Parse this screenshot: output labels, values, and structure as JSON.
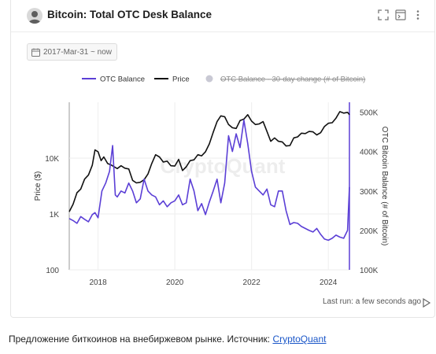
{
  "header": {
    "title": "Bitcoin: Total OTC Desk Balance"
  },
  "filters": {
    "date_range": "2017-Mar-31 ~ now"
  },
  "footer": {
    "last_run": "Last run: a few seconds ago"
  },
  "caption": {
    "text": "Предложение биткоинов на внебиржевом рынке. Источник: ",
    "link": "CryptoQuant"
  },
  "watermark": "CryptoQuant",
  "colors": {
    "otc": "#5b3fd6",
    "price": "#111111",
    "change": "#c9c9d4",
    "grid": "#eeeeee"
  },
  "chart_data": {
    "type": "line",
    "title": "Bitcoin: Total OTC Desk Balance",
    "ylabel_left": "Price ($)",
    "ylabel_right": "OTC Bitcoin Balance (# of Bitcoin)",
    "y_left_scale": "log",
    "y_left_range": [
      100,
      100000
    ],
    "y_left_ticks": [
      {
        "v": 100,
        "label": "100"
      },
      {
        "v": 1000,
        "label": "1K"
      },
      {
        "v": 10000,
        "label": "10K"
      }
    ],
    "y_right_range": [
      100000,
      525000
    ],
    "y_right_ticks": [
      {
        "v": 100000,
        "label": "100K"
      },
      {
        "v": 200000,
        "label": "200K"
      },
      {
        "v": 300000,
        "label": "300K"
      },
      {
        "v": 400000,
        "label": "400K"
      },
      {
        "v": 500000,
        "label": "500K"
      }
    ],
    "x_range": [
      2017.25,
      2024.55
    ],
    "x_ticks": [
      2018,
      2020,
      2022,
      2024
    ],
    "legend": [
      "OTC Balance",
      "Price",
      "OTC Balance - 30-day change (# of Bitcoin)"
    ],
    "legend_position": "top",
    "series": [
      {
        "name": "OTC Balance",
        "axis": "right",
        "x": [
          2017.25,
          2017.35,
          2017.45,
          2017.55,
          2017.65,
          2017.75,
          2017.85,
          2017.92,
          2018.0,
          2018.1,
          2018.2,
          2018.3,
          2018.38,
          2018.45,
          2018.5,
          2018.6,
          2018.7,
          2018.8,
          2018.9,
          2019.0,
          2019.1,
          2019.2,
          2019.3,
          2019.4,
          2019.5,
          2019.6,
          2019.7,
          2019.8,
          2019.9,
          2020.0,
          2020.1,
          2020.2,
          2020.3,
          2020.4,
          2020.5,
          2020.6,
          2020.7,
          2020.8,
          2020.9,
          2021.0,
          2021.1,
          2021.2,
          2021.3,
          2021.4,
          2021.5,
          2021.6,
          2021.7,
          2021.8,
          2021.9,
          2022.0,
          2022.1,
          2022.2,
          2022.3,
          2022.4,
          2022.5,
          2022.6,
          2022.7,
          2022.8,
          2022.9,
          2023.0,
          2023.1,
          2023.2,
          2023.3,
          2023.4,
          2023.5,
          2023.6,
          2023.7,
          2023.8,
          2023.9,
          2024.0,
          2024.1,
          2024.2,
          2024.3,
          2024.4,
          2024.5,
          2024.55
        ],
        "values": [
          230000,
          225000,
          218000,
          235000,
          228000,
          222000,
          240000,
          245000,
          232000,
          300000,
          320000,
          350000,
          415000,
          290000,
          285000,
          300000,
          295000,
          320000,
          300000,
          270000,
          280000,
          330000,
          300000,
          290000,
          285000,
          265000,
          275000,
          260000,
          270000,
          275000,
          290000,
          265000,
          270000,
          330000,
          300000,
          250000,
          268000,
          240000,
          272000,
          300000,
          330000,
          270000,
          320000,
          440000,
          400000,
          445000,
          410000,
          480000,
          420000,
          350000,
          310000,
          300000,
          290000,
          305000,
          265000,
          260000,
          300000,
          300000,
          250000,
          215000,
          220000,
          218000,
          210000,
          205000,
          200000,
          196000,
          205000,
          190000,
          178000,
          175000,
          180000,
          188000,
          183000,
          180000,
          200000,
          310000
        ]
      },
      {
        "name": "Price",
        "axis": "left",
        "x": [
          2017.25,
          2017.35,
          2017.45,
          2017.55,
          2017.65,
          2017.75,
          2017.85,
          2017.92,
          2018.0,
          2018.08,
          2018.15,
          2018.25,
          2018.35,
          2018.5,
          2018.6,
          2018.7,
          2018.8,
          2018.9,
          2019.0,
          2019.1,
          2019.2,
          2019.3,
          2019.4,
          2019.5,
          2019.6,
          2019.7,
          2019.8,
          2019.9,
          2020.0,
          2020.1,
          2020.2,
          2020.3,
          2020.4,
          2020.5,
          2020.6,
          2020.7,
          2020.8,
          2020.9,
          2021.0,
          2021.1,
          2021.2,
          2021.3,
          2021.4,
          2021.5,
          2021.6,
          2021.7,
          2021.8,
          2021.9,
          2022.0,
          2022.1,
          2022.2,
          2022.3,
          2022.4,
          2022.5,
          2022.6,
          2022.7,
          2022.8,
          2022.9,
          2023.0,
          2023.1,
          2023.2,
          2023.3,
          2023.4,
          2023.5,
          2023.6,
          2023.7,
          2023.8,
          2023.9,
          2024.0,
          2024.1,
          2024.2,
          2024.3,
          2024.4,
          2024.5,
          2024.55
        ],
        "values": [
          1100,
          1500,
          2400,
          2800,
          4200,
          5000,
          7500,
          14000,
          13000,
          9000,
          10500,
          8000,
          7500,
          6500,
          7300,
          6600,
          6400,
          4000,
          3600,
          3700,
          4100,
          5200,
          8000,
          11500,
          10500,
          8500,
          8800,
          7300,
          7200,
          9500,
          6000,
          7000,
          9000,
          9300,
          11500,
          11000,
          13000,
          18000,
          29000,
          45000,
          57000,
          55000,
          40000,
          35000,
          34000,
          47000,
          50000,
          60000,
          46000,
          40000,
          41000,
          45000,
          30000,
          20000,
          23000,
          20000,
          19500,
          16500,
          16800,
          23000,
          24000,
          28000,
          27500,
          30000,
          29500,
          26000,
          28500,
          37000,
          42000,
          43000,
          52000,
          68000,
          64000,
          66000,
          60000
        ]
      },
      {
        "name": "OTC Balance - 30-day change (# of Bitcoin)",
        "axis": "right",
        "hidden": true
      }
    ]
  }
}
